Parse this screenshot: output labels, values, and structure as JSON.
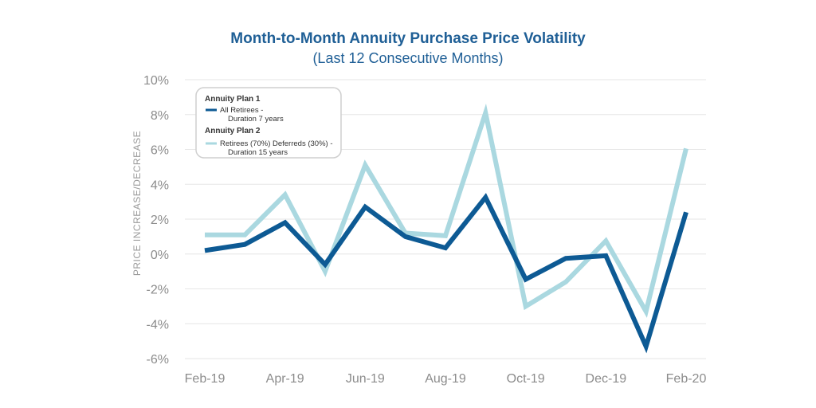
{
  "chart_data": {
    "type": "line",
    "title": "Month-to-Month Annuity Purchase Price Volatility",
    "subtitle": "(Last 12 Consecutive Months)",
    "xlabel": "",
    "ylabel": "PRICE INCREASE/DECREASE",
    "categories": [
      "Feb-19",
      "Mar-19",
      "Apr-19",
      "May-19",
      "Jun-19",
      "Jul-19",
      "Aug-19",
      "Sep-19",
      "Oct-19",
      "Nov-19",
      "Dec-19",
      "Jan-20",
      "Feb-20"
    ],
    "x_tick_labels": [
      "Feb-19",
      "Apr-19",
      "Jun-19",
      "Aug-19",
      "Oct-19",
      "Dec-19",
      "Feb-20"
    ],
    "y_tick_labels": [
      "10%",
      "8%",
      "6%",
      "4%",
      "2%",
      "0%",
      "-2%",
      "-4%",
      "-6%"
    ],
    "ylim": [
      -6,
      10
    ],
    "y_ticks": [
      10,
      8,
      6,
      4,
      2,
      0,
      -2,
      -4,
      -6
    ],
    "grid": true,
    "legend_position": "top-left",
    "series": [
      {
        "name": "All Retirees - Duration 7 years",
        "group": "Annuity Plan 1",
        "legend_line1": "All Retirees -",
        "legend_line2": "Duration 7 years",
        "color": "#0d5a94",
        "values": [
          0.2,
          0.55,
          1.8,
          -0.6,
          2.7,
          1.0,
          0.35,
          3.25,
          -1.45,
          -0.25,
          -0.1,
          -5.3,
          2.4
        ]
      },
      {
        "name": "Retirees (70%) Deferreds (30%) - Duration 15 years",
        "group": "Annuity Plan 2",
        "legend_line1": "Retirees (70%) Deferreds (30%) -",
        "legend_line2": "Duration 15 years",
        "color": "#aad8e0",
        "values": [
          1.1,
          1.1,
          3.4,
          -1.0,
          5.1,
          1.2,
          1.05,
          8.1,
          -3.0,
          -1.6,
          0.75,
          -3.3,
          6.05
        ]
      }
    ]
  }
}
